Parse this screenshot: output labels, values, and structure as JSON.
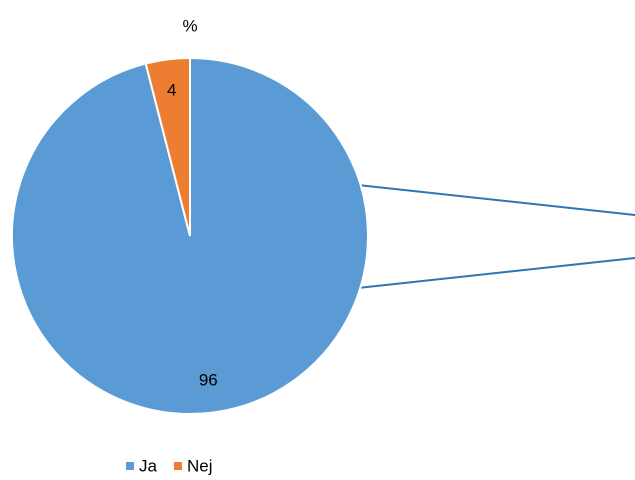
{
  "chart_data": {
    "type": "pie",
    "title": "%",
    "categories": [
      "Ja",
      "Nej"
    ],
    "values": [
      96,
      4
    ],
    "colors": [
      "#5b9bd5",
      "#ed7d31"
    ],
    "legend": "bottom"
  }
}
